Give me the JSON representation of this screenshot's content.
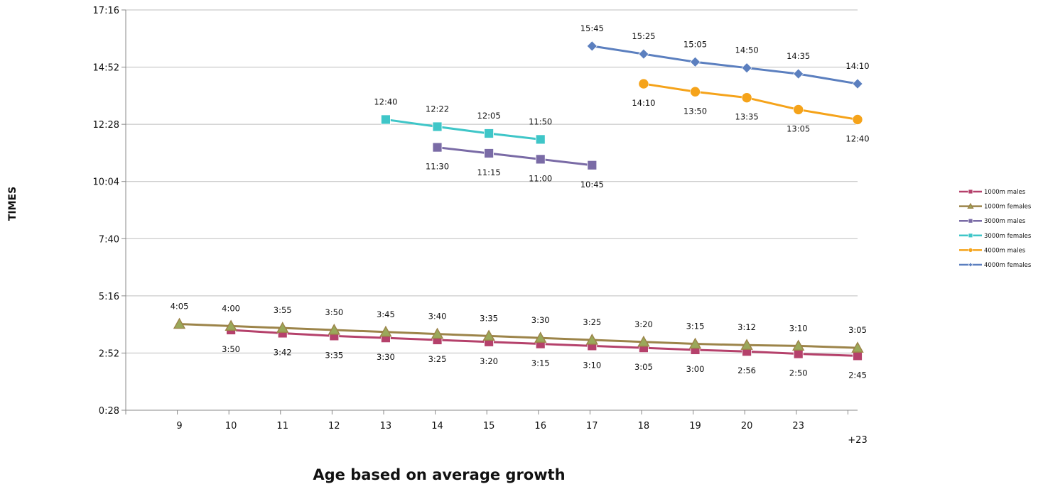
{
  "chart_data": {
    "type": "line",
    "title": "",
    "xlabel": "Age based on average growth",
    "ylabel": "TIMES",
    "categories": [
      "9",
      "10",
      "11",
      "12",
      "13",
      "14",
      "15",
      "16",
      "17",
      "18",
      "19",
      "20",
      "23",
      "+23"
    ],
    "y_ticks": [
      "0:28",
      "2:52",
      "5:16",
      "7:40",
      "10:04",
      "12:28",
      "14:52",
      "17:16"
    ],
    "ylim_seconds": [
      28,
      1036
    ],
    "grid": "horizontal",
    "legend_position": "right",
    "series": [
      {
        "name": "1000m males",
        "color": "#b5416b",
        "marker": "square",
        "values": [
          null,
          "3:50",
          "3:42",
          "3:35",
          "3:30",
          "3:25",
          "3:20",
          "3:15",
          "3:10",
          "3:05",
          "3:00",
          "2:56",
          "2:50",
          "2:45"
        ],
        "label_pos": "below"
      },
      {
        "name": "1000m females",
        "color": "#9c8449",
        "marker": "triangle",
        "values": [
          "4:05",
          "4:00",
          "3:55",
          "3:50",
          "3:45",
          "3:40",
          "3:35",
          "3:30",
          "3:25",
          "3:20",
          "3:15",
          "3:12",
          "3:10",
          "3:05"
        ],
        "label_pos": "above"
      },
      {
        "name": "3000m males",
        "color": "#7a6ba6",
        "marker": "square",
        "values": [
          null,
          null,
          null,
          null,
          null,
          "11:30",
          "11:15",
          "11:00",
          "10:45",
          null,
          null,
          null,
          null,
          null
        ],
        "label_pos": "below"
      },
      {
        "name": "3000m females",
        "color": "#3fc6c8",
        "marker": "square",
        "values": [
          null,
          null,
          null,
          null,
          "12:40",
          "12:22",
          "12:05",
          "11:50",
          null,
          null,
          null,
          null,
          null,
          null
        ],
        "label_pos": "above"
      },
      {
        "name": "4000m males",
        "color": "#f5a31a",
        "marker": "circle",
        "values": [
          null,
          null,
          null,
          null,
          null,
          null,
          null,
          null,
          null,
          "14:10",
          "13:50",
          "13:35",
          "13:05",
          "12:40"
        ],
        "label_pos": "below"
      },
      {
        "name": "4000m females",
        "color": "#5b7fbf",
        "marker": "diamond",
        "values": [
          null,
          null,
          null,
          null,
          null,
          null,
          null,
          null,
          "15:45",
          "15:25",
          "15:05",
          "14:50",
          "14:35",
          "14:10"
        ],
        "label_pos": "above"
      }
    ]
  }
}
